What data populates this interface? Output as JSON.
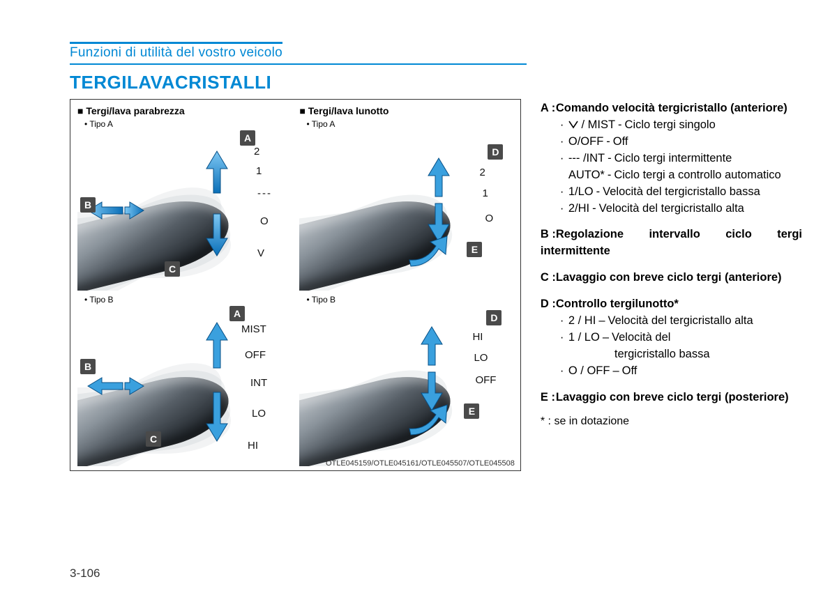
{
  "chapter": "Funzioni di utilità del vostro veicolo",
  "section_title": "TERGILAVACRISTALLI",
  "figure": {
    "left_head": "Tergi/lava parabrezza",
    "right_head": "Tergi/lava lunotto",
    "tipo_a": "Tipo A",
    "tipo_b": "Tipo B",
    "caption": "OTLE045159/OTLE045161/OTLE045507/OTLE045508",
    "left_a": {
      "tags": [
        "A",
        "B",
        "C"
      ],
      "labels": [
        "2",
        "1",
        "---",
        "O",
        "V"
      ]
    },
    "left_b": {
      "tags": [
        "A",
        "B",
        "C"
      ],
      "labels": [
        "MIST",
        "OFF",
        "INT",
        "LO",
        "HI"
      ]
    },
    "right_a": {
      "tags": [
        "D",
        "E"
      ],
      "labels": [
        "2",
        "1",
        "O"
      ]
    },
    "right_b": {
      "tags": [
        "D",
        "E"
      ],
      "labels": [
        "HI",
        "LO",
        "OFF"
      ]
    }
  },
  "defs": {
    "A": {
      "head": "Comando velocità tergicristallo (anteriore)",
      "items": [
        {
          "k": "V / MIST",
          "v": "Ciclo tergi singolo",
          "symbol": true
        },
        {
          "k": "O/OFF",
          "v": "Off"
        },
        {
          "k": "--- /INT",
          "v": "Ciclo tergi intermittente"
        },
        {
          "k": "AUTO*",
          "v": "Ciclo tergi a controllo automatico",
          "nodot": true
        },
        {
          "k": "1/LO",
          "v": "Velocità del tergicristallo bassa"
        },
        {
          "k": "2/HI",
          "v": "Velocità del tergicristallo alta"
        }
      ]
    },
    "B": "Regolazione intervallo ciclo tergi intermittente",
    "C": "Lavaggio con breve ciclo tergi (anteriore)",
    "D": {
      "head": "Controllo tergilunotto*",
      "items": [
        {
          "k": "2 / HI",
          "v": "Velocità del tergicristallo alta"
        },
        {
          "k": "1 / LO",
          "v": "Velocità del",
          "cont": "tergicristallo bassa"
        },
        {
          "k": "O / OFF",
          "v": "Off"
        }
      ]
    },
    "E": "Lavaggio con breve ciclo tergi (posteriore)",
    "footnote": "* : se in dotazione"
  },
  "page": "3-106"
}
